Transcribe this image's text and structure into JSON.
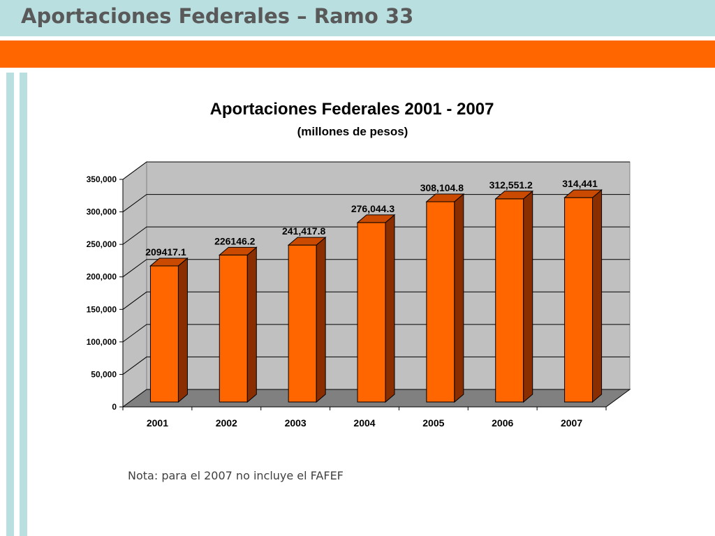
{
  "slide": {
    "title": "Aportaciones Federales – Ramo 33",
    "note": "Nota: para el 2007 no incluye el FAFEF"
  },
  "colors": {
    "header_band": "#b9dfe0",
    "accent_band": "#ff6600",
    "bar_front": "#ff6600",
    "bar_side": "#8a2e00",
    "bar_top": "#c94a00",
    "plot_wall": "#c0c0c0",
    "plot_floor": "#808080"
  },
  "chart_data": {
    "type": "bar",
    "title": "Aportaciones Federales 2001 - 2007",
    "subtitle": "(millones de pesos)",
    "categories": [
      "2001",
      "2002",
      "2003",
      "2004",
      "2005",
      "2006",
      "2007"
    ],
    "values": [
      209417.1,
      226146.2,
      241417.8,
      276044.3,
      308104.8,
      312551.2,
      314441
    ],
    "data_labels": [
      "209417.1",
      "226146.2",
      "241,417.8",
      "276,044.3",
      "308,104.8",
      "312,551.2",
      "314,441"
    ],
    "ylim": [
      0,
      350000
    ],
    "yticks": [
      0,
      50000,
      100000,
      150000,
      200000,
      250000,
      300000,
      350000
    ],
    "ytick_labels": [
      "0",
      "50,000",
      "100,000",
      "150,000",
      "200,000",
      "250,000",
      "300,000",
      "350,000"
    ],
    "grid": true,
    "legend": "none",
    "style": "3d"
  }
}
